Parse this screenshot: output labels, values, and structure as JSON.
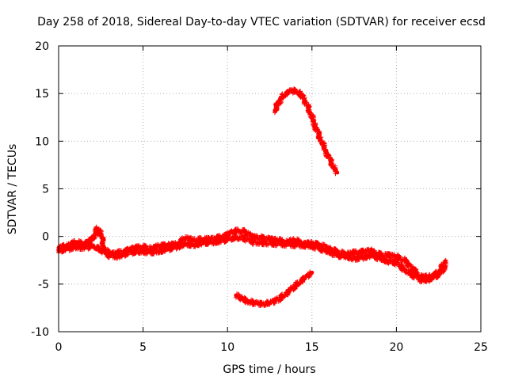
{
  "chart_data": {
    "type": "scatter",
    "title": "Day 258 of 2018, Sidereal Day-to-day VTEC variation (SDTVAR) for receiver ecsd",
    "xlabel": "GPS time / hours",
    "ylabel": "SDTVAR / TECUs",
    "xlim": [
      0,
      25
    ],
    "ylim": [
      -10,
      20
    ],
    "xticks": [
      0,
      5,
      10,
      15,
      20,
      25
    ],
    "yticks": [
      -10,
      -5,
      0,
      5,
      10,
      15,
      20
    ],
    "xtick_labels": [
      "0",
      "5",
      "10",
      "15",
      "20",
      "25"
    ],
    "ytick_labels": [
      "-10",
      "-5",
      "0",
      "5",
      "10",
      "15",
      "20"
    ],
    "grid": true,
    "marker_color": "#ff0000",
    "series": [
      {
        "name": "main-band",
        "points": [
          [
            0,
            -1.2
          ],
          [
            0.5,
            -1.0
          ],
          [
            1.0,
            -0.6
          ],
          [
            1.5,
            -0.8
          ],
          [
            2.0,
            -0.3
          ],
          [
            2.3,
            0.8
          ],
          [
            2.5,
            0.3
          ],
          [
            2.7,
            -1.2
          ],
          [
            3.0,
            -1.9
          ],
          [
            3.5,
            -1.7
          ],
          [
            4.0,
            -1.5
          ],
          [
            4.5,
            -1.2
          ],
          [
            5.0,
            -1.1
          ],
          [
            5.5,
            -1.3
          ],
          [
            6.0,
            -1.0
          ],
          [
            6.5,
            -0.9
          ],
          [
            7.0,
            -0.8
          ],
          [
            7.5,
            -0.2
          ],
          [
            8.0,
            -0.4
          ],
          [
            8.5,
            -0.3
          ],
          [
            9.0,
            -0.3
          ],
          [
            9.5,
            -0.1
          ],
          [
            10.0,
            0.2
          ],
          [
            10.5,
            0.6
          ],
          [
            11.0,
            0.5
          ],
          [
            11.5,
            -0.1
          ],
          [
            12.0,
            -0.1
          ],
          [
            12.5,
            -0.3
          ],
          [
            13.0,
            -0.4
          ],
          [
            13.5,
            -0.6
          ],
          [
            14.0,
            -0.4
          ],
          [
            14.5,
            -0.8
          ],
          [
            15.0,
            -0.7
          ],
          [
            15.5,
            -0.9
          ],
          [
            16.0,
            -1.3
          ],
          [
            16.5,
            -1.6
          ],
          [
            17.0,
            -1.9
          ],
          [
            17.5,
            -1.7
          ],
          [
            18.0,
            -1.6
          ],
          [
            18.5,
            -1.5
          ],
          [
            19.0,
            -1.9
          ],
          [
            19.5,
            -2.0
          ],
          [
            20.0,
            -2.1
          ],
          [
            20.5,
            -2.5
          ],
          [
            21.0,
            -3.5
          ],
          [
            21.5,
            -4.3
          ],
          [
            22.0,
            -4.2
          ],
          [
            22.5,
            -3.8
          ],
          [
            22.9,
            -2.6
          ]
        ]
      },
      {
        "name": "main-band-lower",
        "points": [
          [
            0,
            -1.5
          ],
          [
            0.5,
            -1.3
          ],
          [
            1.0,
            -1.1
          ],
          [
            1.5,
            -1.2
          ],
          [
            2.0,
            -1.0
          ],
          [
            2.5,
            -1.4
          ],
          [
            3.0,
            -2.0
          ],
          [
            3.5,
            -2.1
          ],
          [
            4.0,
            -1.8
          ],
          [
            4.5,
            -1.6
          ],
          [
            5.0,
            -1.6
          ],
          [
            5.5,
            -1.7
          ],
          [
            6.0,
            -1.5
          ],
          [
            6.5,
            -1.3
          ],
          [
            7.0,
            -1.1
          ],
          [
            7.5,
            -0.8
          ],
          [
            8.0,
            -0.9
          ],
          [
            8.5,
            -0.7
          ],
          [
            9.0,
            -0.6
          ],
          [
            9.5,
            -0.5
          ],
          [
            10.0,
            -0.3
          ],
          [
            10.5,
            -0.1
          ],
          [
            11.0,
            -0.2
          ],
          [
            11.5,
            -0.6
          ],
          [
            15.0,
            -1.0
          ],
          [
            15.5,
            -1.3
          ],
          [
            16.0,
            -1.6
          ],
          [
            16.5,
            -2.0
          ],
          [
            17.0,
            -2.1
          ],
          [
            17.5,
            -2.3
          ],
          [
            18.0,
            -2.2
          ],
          [
            18.5,
            -2.0
          ],
          [
            19.0,
            -2.3
          ],
          [
            19.5,
            -2.6
          ],
          [
            20.0,
            -2.8
          ],
          [
            20.5,
            -3.5
          ],
          [
            21.0,
            -4.1
          ],
          [
            21.5,
            -4.6
          ],
          [
            22.0,
            -4.5
          ],
          [
            22.5,
            -4.0
          ],
          [
            22.9,
            -3.2
          ]
        ]
      },
      {
        "name": "upper-arc",
        "points": [
          [
            12.8,
            13.2
          ],
          [
            13.0,
            14.0
          ],
          [
            13.3,
            14.8
          ],
          [
            13.6,
            15.2
          ],
          [
            14.0,
            15.3
          ],
          [
            14.3,
            15.0
          ],
          [
            14.6,
            14.2
          ],
          [
            14.9,
            13.0
          ],
          [
            15.2,
            11.6
          ],
          [
            15.5,
            10.3
          ],
          [
            15.8,
            9.0
          ],
          [
            16.1,
            7.9
          ],
          [
            16.3,
            7.2
          ],
          [
            16.5,
            6.7
          ]
        ]
      },
      {
        "name": "lower-arc",
        "points": [
          [
            10.5,
            -6.2
          ],
          [
            10.8,
            -6.5
          ],
          [
            11.2,
            -6.8
          ],
          [
            11.6,
            -7.0
          ],
          [
            12.0,
            -7.1
          ],
          [
            12.4,
            -7.0
          ],
          [
            12.8,
            -6.8
          ],
          [
            13.2,
            -6.4
          ],
          [
            13.6,
            -5.8
          ],
          [
            14.0,
            -5.2
          ],
          [
            14.4,
            -4.6
          ],
          [
            14.8,
            -4.1
          ],
          [
            15.0,
            -3.8
          ]
        ]
      }
    ]
  }
}
